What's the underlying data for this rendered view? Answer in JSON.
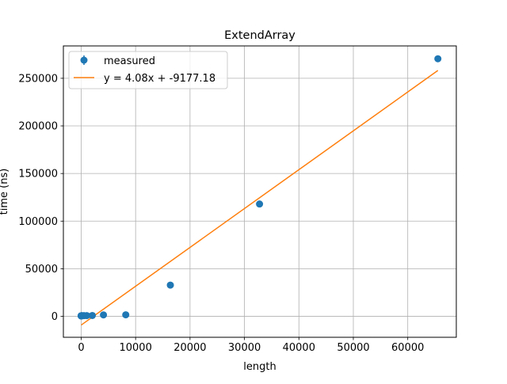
{
  "chart_data": {
    "type": "scatter",
    "title": "ExtendArray",
    "xlabel": "length",
    "ylabel": "time (ns)",
    "xlim": [
      -3270,
      68920
    ],
    "ylim": [
      -22000,
      284000
    ],
    "xticks": [
      0,
      10000,
      20000,
      30000,
      40000,
      50000,
      60000
    ],
    "xtick_labels": [
      "0",
      "10000",
      "20000",
      "30000",
      "40000",
      "50000",
      "60000"
    ],
    "yticks": [
      0,
      50000,
      100000,
      150000,
      200000,
      250000
    ],
    "ytick_labels": [
      "0",
      "50000",
      "100000",
      "150000",
      "200000",
      "250000"
    ],
    "grid": true,
    "legend_position": "upper-left",
    "series": [
      {
        "name": "measured",
        "kind": "errorbar-points",
        "color": "#1f77b4",
        "x": [
          1,
          2,
          4,
          8,
          16,
          32,
          64,
          128,
          256,
          512,
          1024,
          2048,
          4096,
          8192,
          16384,
          32768,
          65536
        ],
        "y": [
          500,
          520,
          540,
          560,
          580,
          600,
          620,
          650,
          700,
          750,
          800,
          900,
          1500,
          1600,
          32800,
          118000,
          270500
        ]
      },
      {
        "name": "y = 4.08x + -9177.18",
        "kind": "line",
        "color": "#ff7f0e",
        "slope": 4.08,
        "intercept": -9177.18,
        "x": [
          1,
          65536
        ]
      }
    ]
  }
}
